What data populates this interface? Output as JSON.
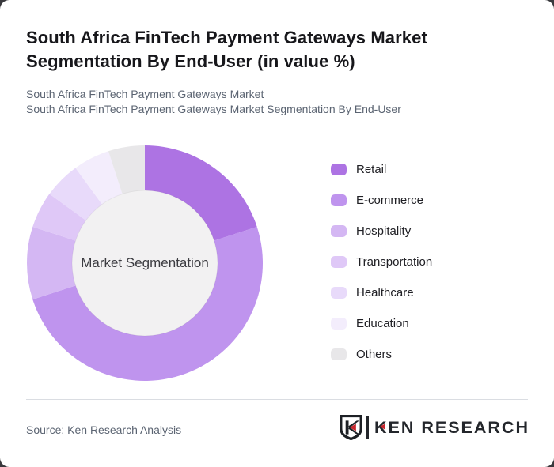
{
  "card": {
    "title": "South Africa FinTech Payment Gateways Market Segmentation By End-User (in value %)",
    "subtitle_line1": "South Africa FinTech Payment Gateways Market",
    "subtitle_line2": "South Africa FinTech Payment Gateways Market Segmentation By End-User"
  },
  "chart_data": {
    "type": "pie",
    "subtype": "donut",
    "title": "South Africa FinTech Payment Gateways Market Segmentation By End-User (in value %)",
    "center_label": "Market Segmentation",
    "categories": [
      "Retail",
      "E-commerce",
      "Hospitality",
      "Transportation",
      "Healthcare",
      "Education",
      "Others"
    ],
    "values": [
      20,
      50,
      10,
      5,
      5,
      5,
      5
    ],
    "unit": "%",
    "start_angle_deg": 0,
    "direction": "clockwise",
    "legend_position": "right",
    "data_labels_shown": false,
    "colors": [
      "#ad73e3",
      "#bf94ee",
      "#d4b7f3",
      "#dfc8f7",
      "#e8dafa",
      "#f3edfc",
      "#e8e7e9"
    ],
    "hole_color": "#f2f1f2",
    "hole_radius_ratio": 0.62
  },
  "footer": {
    "source": "Source: Ken Research Analysis",
    "logo_text": "KEN RESEARCH",
    "logo_accent_color": "#c8252c"
  }
}
